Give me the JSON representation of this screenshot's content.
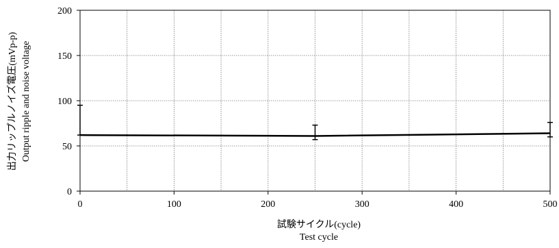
{
  "chart_data": {
    "type": "line",
    "title": "",
    "xlabel": [
      "試験サイクル(cycle)",
      "Test cycle"
    ],
    "ylabel": [
      "出力リップルノイズ電圧(mVp-p)",
      "Output ripple and noise voltage"
    ],
    "xlim": [
      0,
      500
    ],
    "ylim": [
      0,
      200
    ],
    "x_ticks": [
      0,
      100,
      200,
      300,
      400,
      500
    ],
    "y_ticks": [
      0,
      50,
      100,
      150,
      200
    ],
    "x_grid_lines": [
      50,
      100,
      150,
      200,
      250,
      300,
      350,
      400,
      450
    ],
    "y_grid_lines": [
      50,
      100,
      150
    ],
    "grid": true,
    "legend": "none",
    "series": [
      {
        "points": [
          {
            "x": 0,
            "y": 62,
            "err_low": 62,
            "err_high": 95
          },
          {
            "x": 250,
            "y": 61,
            "err_low": 57,
            "err_high": 73
          },
          {
            "x": 500,
            "y": 64,
            "err_low": 60,
            "err_high": 76
          }
        ],
        "color": "#000000"
      }
    ]
  }
}
